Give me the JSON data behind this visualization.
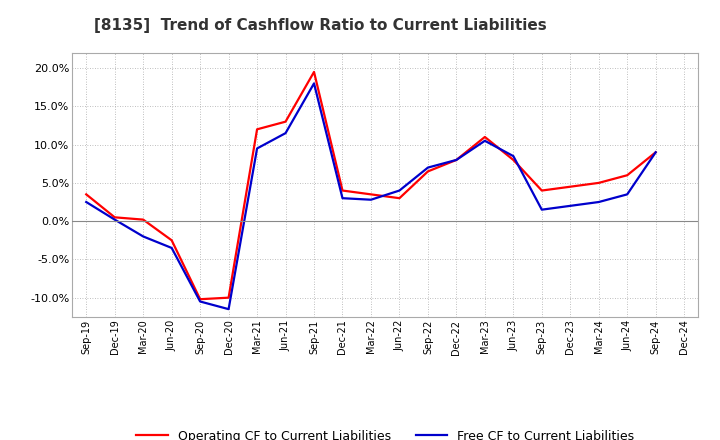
{
  "title": "[8135]  Trend of Cashflow Ratio to Current Liabilities",
  "x_labels": [
    "Sep-19",
    "Dec-19",
    "Mar-20",
    "Jun-20",
    "Sep-20",
    "Dec-20",
    "Mar-21",
    "Jun-21",
    "Sep-21",
    "Dec-21",
    "Mar-22",
    "Jun-22",
    "Sep-22",
    "Dec-22",
    "Mar-23",
    "Jun-23",
    "Sep-23",
    "Dec-23",
    "Mar-24",
    "Jun-24",
    "Sep-24",
    "Dec-24"
  ],
  "operating_cf": [
    3.5,
    0.5,
    0.2,
    -2.5,
    -10.2,
    -10.0,
    12.0,
    13.0,
    19.5,
    4.0,
    3.5,
    3.0,
    6.5,
    8.0,
    11.0,
    8.0,
    4.0,
    4.5,
    5.0,
    6.0,
    9.0,
    null
  ],
  "free_cf": [
    2.5,
    0.2,
    -2.0,
    -3.5,
    -10.5,
    -11.5,
    9.5,
    11.5,
    18.0,
    3.0,
    2.8,
    4.0,
    7.0,
    8.0,
    10.5,
    8.5,
    1.5,
    2.0,
    2.5,
    3.5,
    9.0,
    null
  ],
  "operating_color": "#FF0000",
  "free_color": "#0000CC",
  "background_color": "#FFFFFF",
  "plot_bg_color": "#FFFFFF",
  "grid_color": "#AAAAAA",
  "ylim": [
    -12.5,
    22
  ],
  "yticks": [
    -10,
    -5,
    0,
    5,
    10,
    15,
    20
  ],
  "legend_op": "Operating CF to Current Liabilities",
  "legend_free": "Free CF to Current Liabilities",
  "title_fontsize": 11,
  "linewidth": 1.6
}
